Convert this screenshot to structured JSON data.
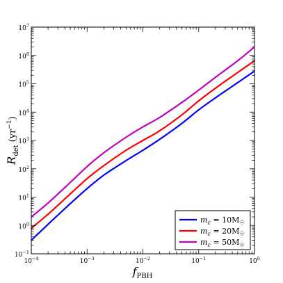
{
  "chart_data": {
    "type": "line",
    "xlabel": {
      "main": "f",
      "sub": "PBH"
    },
    "ylabel": {
      "main": "R",
      "sub": "det",
      "unit_pre": "(yr",
      "unit_sup": "−1",
      "unit_post": ")"
    },
    "xscale": "log",
    "yscale": "log",
    "xlim": [
      0.0001,
      1
    ],
    "ylim": [
      0.1,
      10000000
    ],
    "x_ticks": [
      {
        "value": 0.0001,
        "base": "10",
        "exp": "−4"
      },
      {
        "value": 0.001,
        "base": "10",
        "exp": "−3"
      },
      {
        "value": 0.01,
        "base": "10",
        "exp": "−2"
      },
      {
        "value": 0.1,
        "base": "10",
        "exp": "−1"
      },
      {
        "value": 1,
        "base": "10",
        "exp": "0"
      }
    ],
    "y_ticks": [
      {
        "value": 0.1,
        "base": "10",
        "exp": "−1"
      },
      {
        "value": 1,
        "base": "10",
        "exp": "0"
      },
      {
        "value": 10,
        "base": "10",
        "exp": "1"
      },
      {
        "value": 100,
        "base": "10",
        "exp": "2"
      },
      {
        "value": 1000,
        "base": "10",
        "exp": "3"
      },
      {
        "value": 10000,
        "base": "10",
        "exp": "4"
      },
      {
        "value": 100000,
        "base": "10",
        "exp": "5"
      },
      {
        "value": 1000000,
        "base": "10",
        "exp": "6"
      },
      {
        "value": 10000000,
        "base": "10",
        "exp": "7"
      }
    ],
    "grid": false,
    "legend_position": "bottom-right",
    "series": [
      {
        "name": "m_c = 10M☉",
        "legend": {
          "lhs": "m",
          "lhs_sub": "c",
          "eq": " = 10M",
          "sun": "☉"
        },
        "color": "#0000ff",
        "x": [
          0.0001,
          0.0002,
          0.0005,
          0.001,
          0.002,
          0.005,
          0.01,
          0.02,
          0.05,
          0.1,
          0.2,
          0.5,
          1
        ],
        "y": [
          0.3,
          1.1,
          5.9,
          20,
          60,
          195,
          450,
          1100,
          4000,
          12000,
          32000,
          110000,
          280000
        ]
      },
      {
        "name": "m_c = 20M☉",
        "legend": {
          "lhs": "m",
          "lhs_sub": "c",
          "eq": " = 20M",
          "sun": "☉"
        },
        "color": "#ff0000",
        "x": [
          0.0001,
          0.0002,
          0.0005,
          0.001,
          0.002,
          0.005,
          0.01,
          0.02,
          0.05,
          0.1,
          0.2,
          0.5,
          1
        ],
        "y": [
          0.8,
          2.5,
          13,
          45,
          130,
          450,
          1000,
          2200,
          8000,
          25000,
          70000,
          250000,
          650000
        ]
      },
      {
        "name": "m_c = 50M☉",
        "legend": {
          "lhs": "m",
          "lhs_sub": "c",
          "eq": " = 50M",
          "sun": "☉"
        },
        "color": "#bf00bf",
        "x": [
          0.0001,
          0.0002,
          0.0005,
          0.001,
          0.002,
          0.005,
          0.01,
          0.02,
          0.05,
          0.1,
          0.2,
          0.5,
          1
        ],
        "y": [
          2,
          6.2,
          33,
          120,
          370,
          1300,
          3000,
          6500,
          22000,
          60000,
          170000,
          650000,
          2000000
        ]
      }
    ]
  }
}
